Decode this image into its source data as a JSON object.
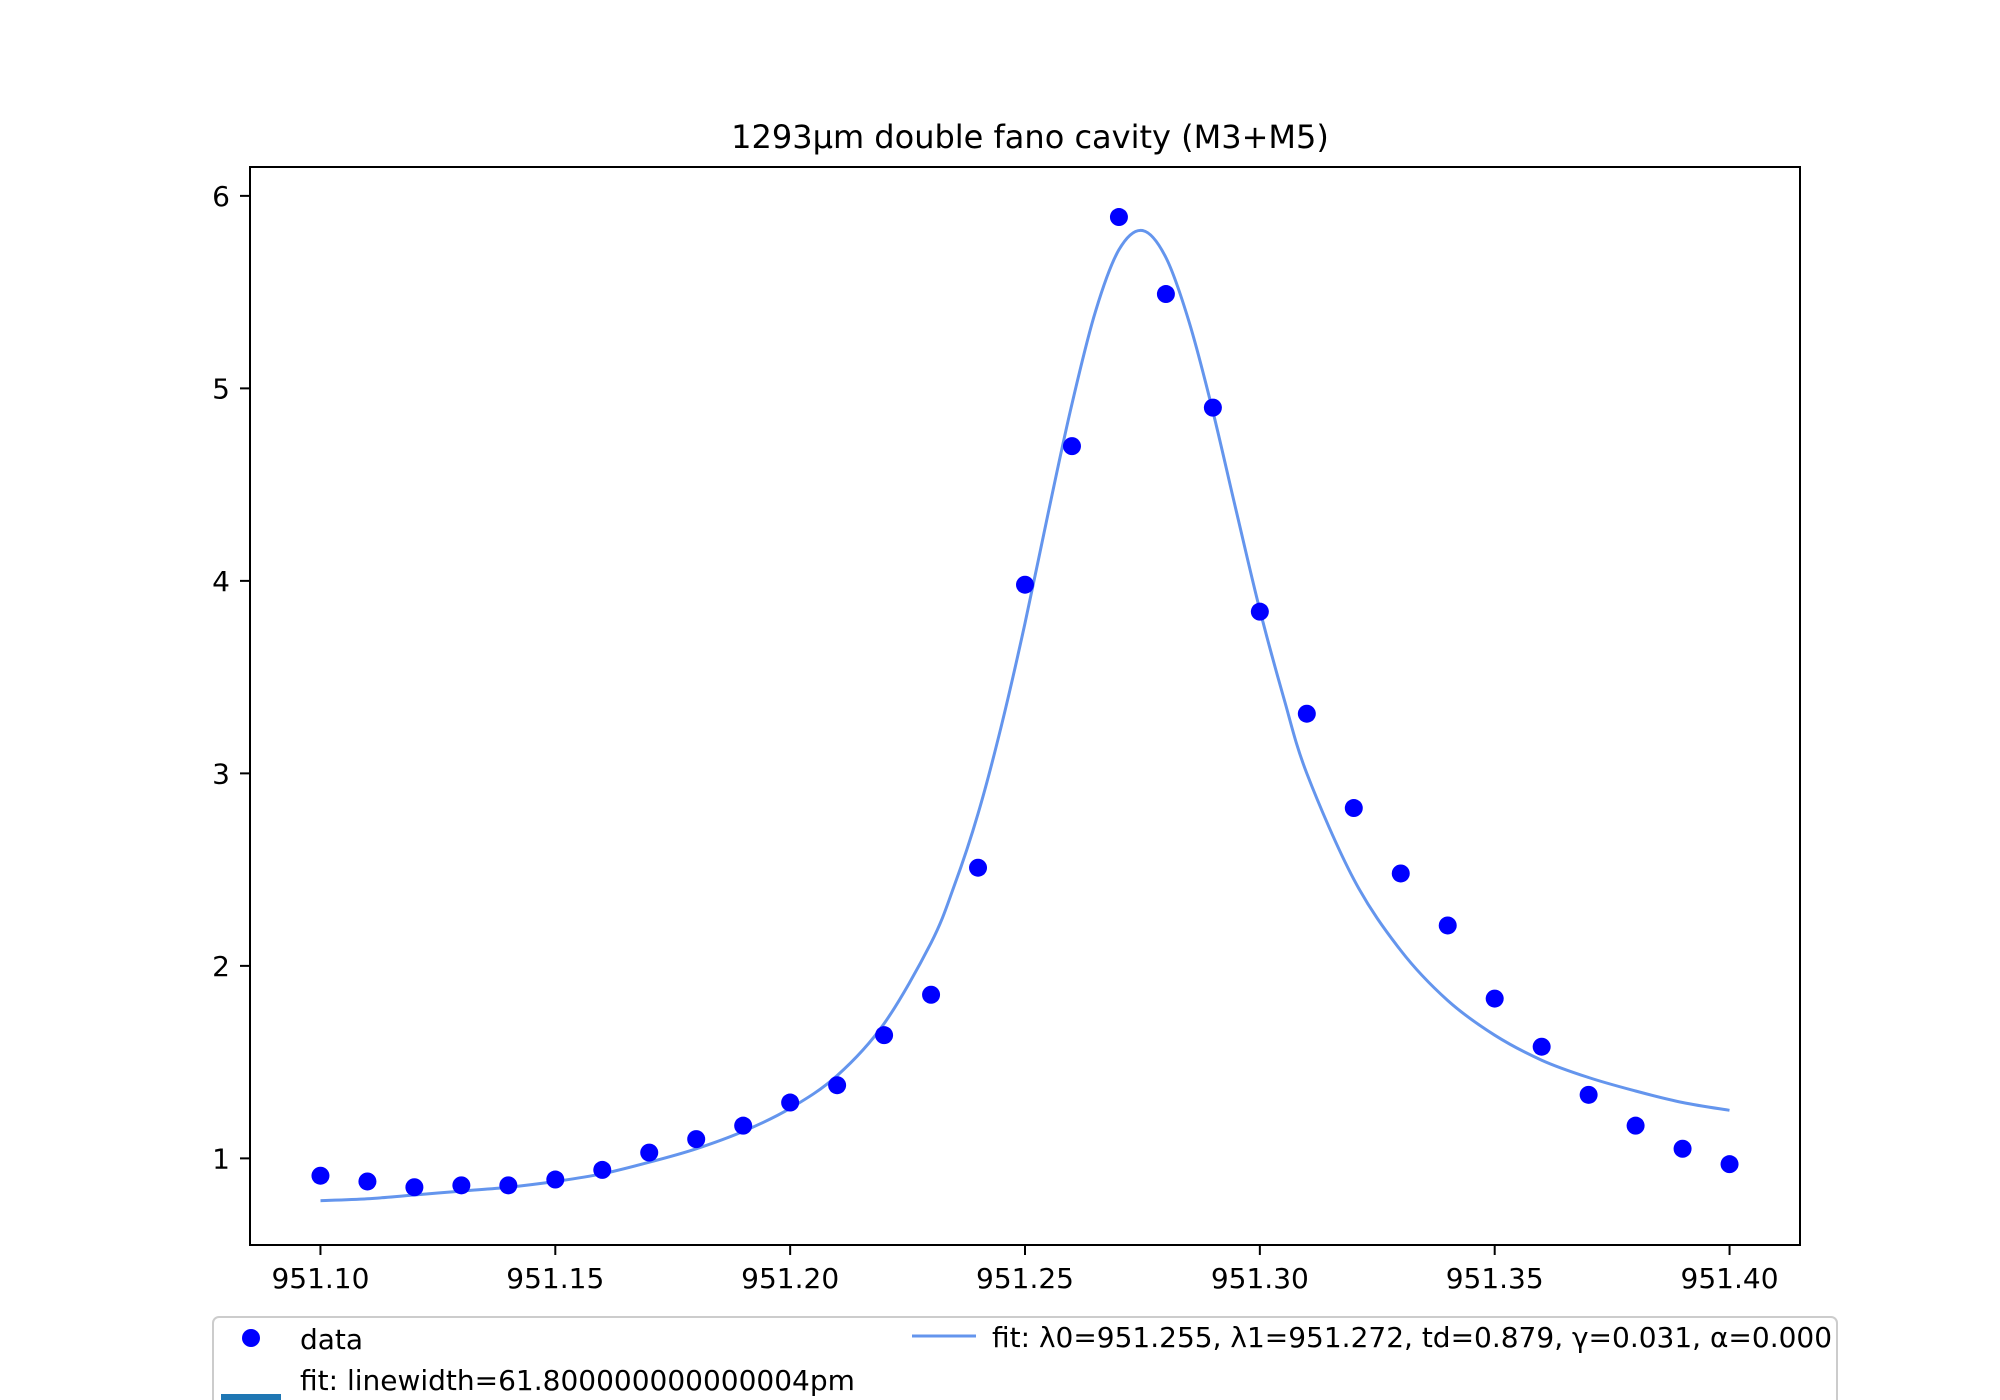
{
  "chart_data": {
    "type": "scatter",
    "title": "1293µm double fano cavity (M3+M5)",
    "xlabel": "",
    "ylabel": "",
    "xlim": [
      951.085,
      951.415
    ],
    "ylim": [
      0.55,
      6.15
    ],
    "x_ticks": [
      951.1,
      951.15,
      951.2,
      951.25,
      951.3,
      951.35,
      951.4
    ],
    "x_tick_labels": [
      "951.10",
      "951.15",
      "951.20",
      "951.25",
      "951.30",
      "951.35",
      "951.40"
    ],
    "y_ticks": [
      1,
      2,
      3,
      4,
      5,
      6
    ],
    "y_tick_labels": [
      "1",
      "2",
      "3",
      "4",
      "5",
      "6"
    ],
    "grid": false,
    "legend_position": "bottom",
    "series": [
      {
        "name": "data",
        "kind": "scatter",
        "color": "#0000ff",
        "x": [
          951.1,
          951.11,
          951.12,
          951.13,
          951.14,
          951.15,
          951.16,
          951.17,
          951.18,
          951.19,
          951.2,
          951.21,
          951.22,
          951.23,
          951.24,
          951.25,
          951.26,
          951.27,
          951.28,
          951.29,
          951.3,
          951.31,
          951.32,
          951.33,
          951.34,
          951.35,
          951.36,
          951.37,
          951.38,
          951.39,
          951.4
        ],
        "y": [
          0.91,
          0.88,
          0.85,
          0.86,
          0.86,
          0.89,
          0.94,
          1.03,
          1.1,
          1.17,
          1.29,
          1.38,
          1.64,
          1.85,
          2.51,
          3.98,
          4.7,
          5.89,
          5.49,
          4.9,
          3.84,
          3.31,
          2.82,
          2.48,
          2.21,
          1.83,
          1.58,
          1.33,
          1.17,
          1.05,
          0.97
        ]
      },
      {
        "name": "fit: λ0=951.255, λ1=951.272, td=0.879, γ=0.031, α=0.000",
        "kind": "line",
        "color": "#6495ed",
        "x": [
          951.1,
          951.11,
          951.12,
          951.13,
          951.14,
          951.15,
          951.16,
          951.17,
          951.18,
          951.19,
          951.2,
          951.21,
          951.22,
          951.23,
          951.235,
          951.24,
          951.245,
          951.25,
          951.255,
          951.26,
          951.265,
          951.27,
          951.275,
          951.28,
          951.285,
          951.29,
          951.295,
          951.3,
          951.305,
          951.31,
          951.32,
          951.33,
          951.34,
          951.35,
          951.36,
          951.37,
          951.38,
          951.39,
          951.4
        ],
        "y": [
          0.78,
          0.79,
          0.81,
          0.83,
          0.85,
          0.88,
          0.92,
          0.98,
          1.05,
          1.14,
          1.26,
          1.43,
          1.7,
          2.12,
          2.42,
          2.79,
          3.25,
          3.78,
          4.36,
          4.92,
          5.4,
          5.72,
          5.82,
          5.68,
          5.34,
          4.88,
          4.36,
          3.85,
          3.4,
          3.0,
          2.45,
          2.08,
          1.82,
          1.64,
          1.51,
          1.42,
          1.35,
          1.29,
          1.25
        ]
      }
    ],
    "extra_legend_entry": {
      "label": "fit: linewidth=61.800000000000004pm",
      "color": "#1f77b4"
    }
  }
}
